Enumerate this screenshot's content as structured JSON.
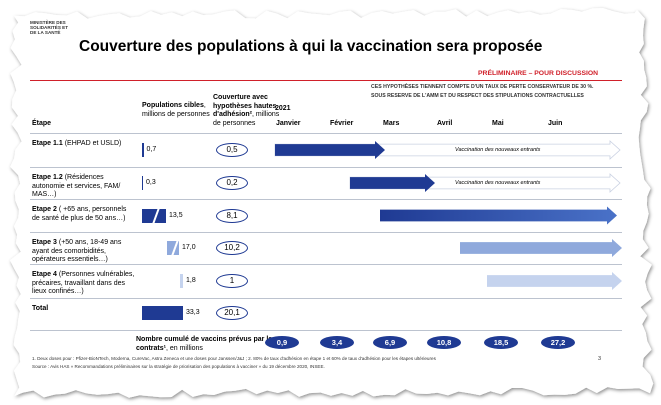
{
  "header": {
    "logo": "MINISTÈRE DES SOLIDARITÉS ET DE LA SANTÉ",
    "title": "Couverture des populations à qui la vaccination sera proposée",
    "status": "PRÉLIMINAIRE – POUR DISCUSSION",
    "note": [
      "CES HYPOTHÈSES TIENNENT COMPTE D'UN TAUX DE PERTE CONSERVATEUR DE 30 %.",
      "SOUS RESERVE DE L'AMM ET DU RESPECT DES STIPULATIONS CONTRACTUELLES"
    ]
  },
  "table": {
    "columns": [
      "Étape",
      {
        "bold": "Populations cibles",
        "rest": ", millions de personnes"
      },
      {
        "bold": "Couverture avec hypothèses hautes d'adhésion²",
        "rest": ", millions de personnes"
      }
    ],
    "rows": [
      {
        "name": "Etape 1.1",
        "detail": "(EHPAD et USLD)",
        "population": "0,7",
        "coverage": "0,5",
        "arrow_label": "Vaccination des nouveaux entrants"
      },
      {
        "name": "Etape 1.2",
        "detail": "(Résidences autonomie et services, FAM/ MAS…)",
        "population": "0,3",
        "coverage": "0,2",
        "arrow_label": "Vaccination des nouveaux entrants"
      },
      {
        "name": "Etape 2",
        "detail": "( +65 ans, personnels de santé de plus de 50 ans…)",
        "population": "13,5",
        "coverage": "8,1"
      },
      {
        "name": "Etape 3",
        "detail": "(+50 ans, 18-49 ans ayant des comorbidités, opérateurs essentiels…)",
        "population": "17,0",
        "coverage": "10,2"
      },
      {
        "name": "Etape 4",
        "detail": "(Personnes vulnérables, précaires, travaillant dans des lieux confinés…)",
        "population": "1,8",
        "coverage": "1"
      },
      {
        "name": "Total",
        "population": "33,3",
        "coverage": "20,1"
      }
    ]
  },
  "timeline": {
    "year": "2021",
    "months": [
      "Janvier",
      "Février",
      "Mars",
      "Avril",
      "Mai",
      "Juin"
    ]
  },
  "bottom": {
    "label": {
      "bold": "Nombre cumulé de vaccins prévus par les contrats¹",
      "rest": ", en millions"
    },
    "values": [
      "0,9",
      "3,4",
      "6,9",
      "10,8",
      "18,5",
      "27,2"
    ]
  },
  "footer": {
    "footnote": "1.    Deux doses pour : Pfizer-BioNTech, Moderna, CureVac, Astra Zeneca et une doses pour Janssen/J&J ;  2.  80% de taux d'adhésion en étape 1 et 60% de taux d'adhésion pour les étapes ultérieures",
    "source": "Source : Avis HAS « Recommandations préliminaires sur la stratégie de priorisation des populations à vacciner » du 19 décembre 2020, INSEE.",
    "page": "3"
  }
}
